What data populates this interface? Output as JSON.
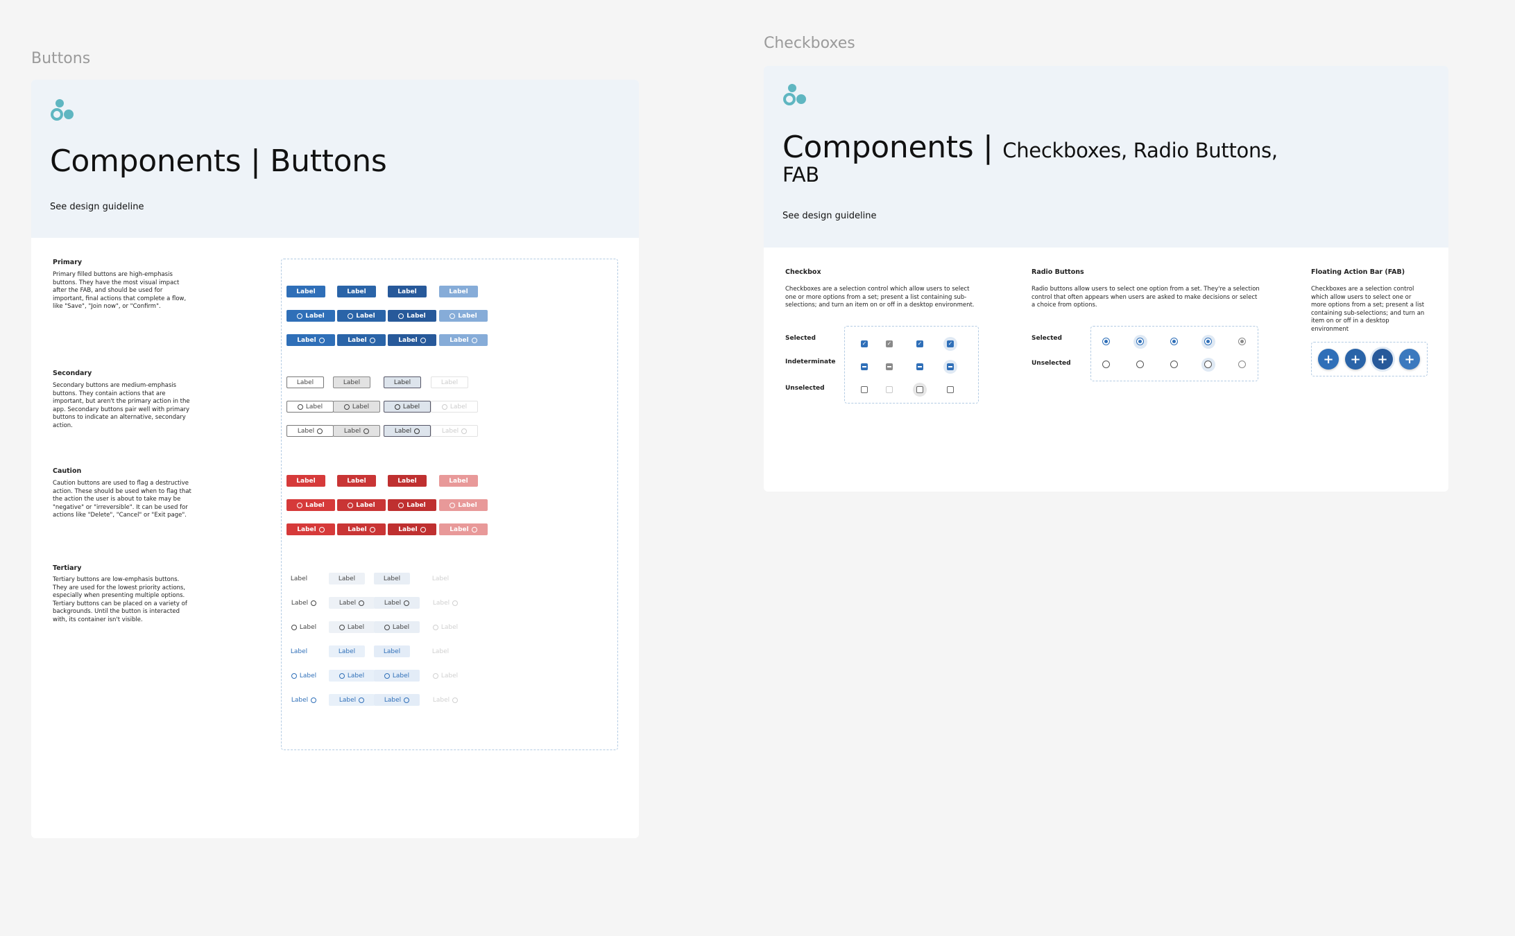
{
  "buttons_frame": {
    "frame_label": "Buttons",
    "title": "Components | Buttons",
    "guideline_link": "See design guideline",
    "sections": {
      "primary": {
        "title": "Primary",
        "description": "Primary filled buttons are high-emphasis buttons. They have the most visual impact after the FAB, and should be used for important, final actions that complete a flow, like \"Save\", \"Join now\", or \"Confirm\"."
      },
      "secondary": {
        "title": "Secondary",
        "description": "Secondary buttons are medium-emphasis buttons. They contain actions that are important, but aren't the primary action in the app. Secondary buttons pair well with primary buttons to indicate an alternative, secondary action."
      },
      "caution": {
        "title": "Caution",
        "description": "Caution buttons are used to flag a destructive action. These should be used when to flag that the action the user is about to take may be \"negative\" or \"irreversible\". It can be used for actions like \"Delete\", \"Cancel\" or \"Exit page\"."
      },
      "tertiary": {
        "title": "Tertiary",
        "description": "Tertiary buttons are low-emphasis buttons. They are used for the lowest priority actions, especially when presenting multiple options. Tertiary buttons can be placed on a variety of backgrounds. Until the button is interacted with, its container isn't visible."
      }
    },
    "button_label": "Label"
  },
  "checkboxes_frame": {
    "frame_label": "Checkboxes",
    "title_main": "Components |",
    "title_sub": "Checkboxes, Radio Buttons,",
    "title_line2": "FAB",
    "guideline_link": "See design guideline",
    "checkbox": {
      "title": "Checkbox",
      "description": "Checkboxes are a selection control which allow users to select one or more options from a set; present a list containing sub-selections; and turn an item on or off in a desktop environment.",
      "rows": [
        "Selected",
        "Indeterminate",
        "Unselected"
      ]
    },
    "radio": {
      "title": "Radio Buttons",
      "description": "Radio buttons allow users to select one option from a set. They're a selection control that often appears when users are asked to make decisions or select a choice from options.",
      "rows": [
        "Selected",
        "Unselected"
      ]
    },
    "fab": {
      "title": "Floating Action Bar (FAB)",
      "description": "Checkboxes are a selection control which allow users to select one or more options from a set; present a list containing sub-selections; and turn an item on or off in a desktop environment",
      "icon_glyph": "+"
    }
  },
  "colors": {
    "primary": "#2f6fb8",
    "caution": "#d63a3a",
    "header_bg": "#eef3f8",
    "logo": "#5fb6c1"
  }
}
